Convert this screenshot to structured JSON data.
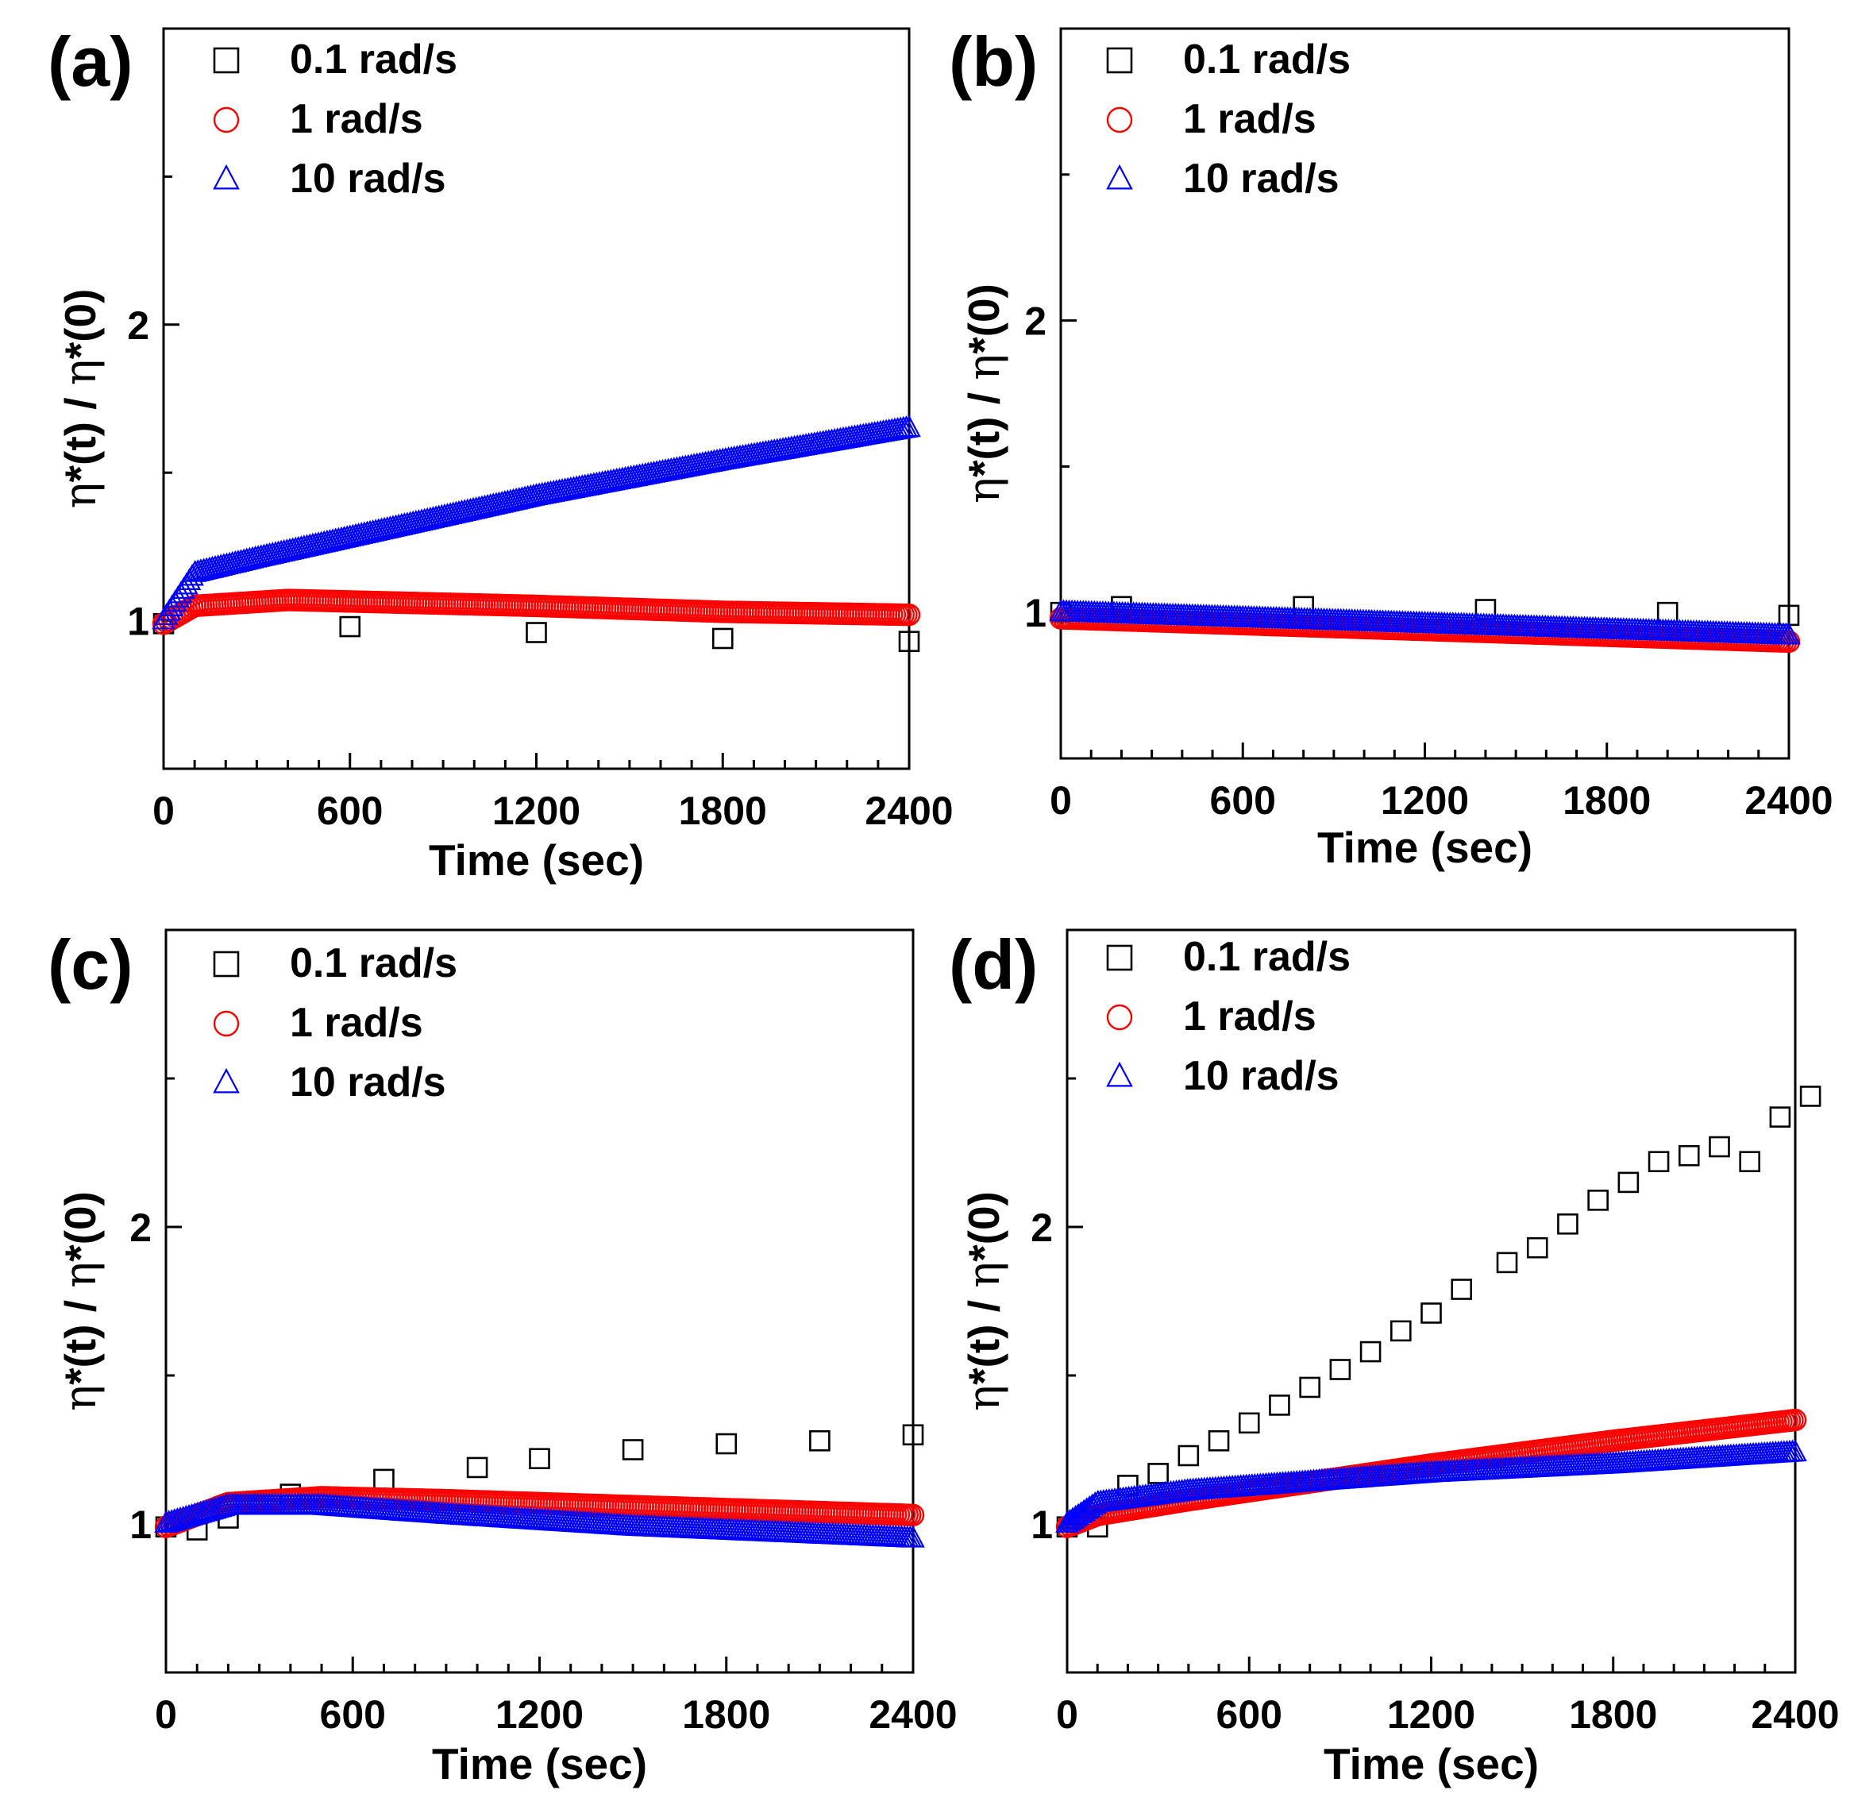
{
  "colors": {
    "series_0.1": "#000000",
    "series_1": "#ff0000",
    "series_10": "#0000ff"
  },
  "chart_data": [
    {
      "panel": "(a)",
      "type": "scatter",
      "xlabel": "Time (sec)",
      "ylabel": [
        "η",
        "*(t) / ",
        "η",
        "*(0)"
      ],
      "xlim": [
        0,
        2400
      ],
      "ylim": [
        0.5,
        3.0
      ],
      "xticks": [
        "0",
        "600",
        "1200",
        "1800",
        "2400"
      ],
      "yticks": [
        "1",
        "2"
      ],
      "legend_position": "top-left",
      "series": [
        {
          "name": "0.1 rad/s",
          "marker": "square",
          "color": "#000000",
          "sparse": true,
          "points": [
            [
              0,
              0.99
            ],
            [
              600,
              0.98
            ],
            [
              1200,
              0.96
            ],
            [
              1800,
              0.94
            ],
            [
              2400,
              0.93
            ]
          ]
        },
        {
          "name": "1 rad/s",
          "marker": "circle",
          "color": "#ff0000",
          "sparse": false,
          "points": [
            [
              0,
              0.99
            ],
            [
              100,
              1.05
            ],
            [
              400,
              1.07
            ],
            [
              800,
              1.06
            ],
            [
              1200,
              1.05
            ],
            [
              1800,
              1.03
            ],
            [
              2400,
              1.02
            ]
          ]
        },
        {
          "name": "10 rad/s",
          "marker": "triangle",
          "color": "#0000ff",
          "sparse": false,
          "points": [
            [
              0,
              1.0
            ],
            [
              100,
              1.16
            ],
            [
              300,
              1.21
            ],
            [
              600,
              1.28
            ],
            [
              1200,
              1.42
            ],
            [
              1800,
              1.54
            ],
            [
              2400,
              1.65
            ]
          ]
        }
      ]
    },
    {
      "panel": "(b)",
      "type": "scatter",
      "xlabel": "Time (sec)",
      "ylabel": [
        "η",
        "*(t) / ",
        "η",
        "*(0)"
      ],
      "xlim": [
        0,
        2400
      ],
      "ylim": [
        0.5,
        3.0
      ],
      "xticks": [
        "0",
        "600",
        "1200",
        "1800",
        "2400"
      ],
      "yticks": [
        "1",
        "2"
      ],
      "legend_position": "top-left",
      "series": [
        {
          "name": "0.1 rad/s",
          "marker": "square",
          "color": "#000000",
          "sparse": true,
          "points": [
            [
              0,
              1.0
            ],
            [
              200,
              1.02
            ],
            [
              800,
              1.02
            ],
            [
              1400,
              1.01
            ],
            [
              2000,
              1.0
            ],
            [
              2400,
              0.99
            ]
          ]
        },
        {
          "name": "1 rad/s",
          "marker": "circle",
          "color": "#ff0000",
          "sparse": false,
          "points": [
            [
              0,
              0.98
            ],
            [
              600,
              0.96
            ],
            [
              1200,
              0.94
            ],
            [
              1800,
              0.92
            ],
            [
              2400,
              0.9
            ]
          ]
        },
        {
          "name": "10 rad/s",
          "marker": "triangle",
          "color": "#0000ff",
          "sparse": false,
          "points": [
            [
              0,
              1.0
            ],
            [
              600,
              0.98
            ],
            [
              1200,
              0.96
            ],
            [
              1800,
              0.94
            ],
            [
              2400,
              0.92
            ]
          ]
        }
      ]
    },
    {
      "panel": "(c)",
      "type": "scatter",
      "xlabel": "Time (sec)",
      "ylabel": [
        "η",
        "*(t) / ",
        "η",
        "*(0)"
      ],
      "xlim": [
        0,
        2400
      ],
      "ylim": [
        0.5,
        3.0
      ],
      "xticks": [
        "0",
        "600",
        "1200",
        "1800",
        "2400"
      ],
      "yticks": [
        "1",
        "2"
      ],
      "legend_position": "top-left",
      "series": [
        {
          "name": "0.1 rad/s",
          "marker": "square",
          "color": "#000000",
          "sparse": true,
          "points": [
            [
              0,
              0.99
            ],
            [
              100,
              0.98
            ],
            [
              200,
              1.02
            ],
            [
              400,
              1.1
            ],
            [
              700,
              1.15
            ],
            [
              1000,
              1.19
            ],
            [
              1200,
              1.22
            ],
            [
              1500,
              1.25
            ],
            [
              1800,
              1.27
            ],
            [
              2100,
              1.28
            ],
            [
              2400,
              1.3
            ]
          ]
        },
        {
          "name": "1 rad/s",
          "marker": "circle",
          "color": "#ff0000",
          "sparse": false,
          "points": [
            [
              0,
              0.99
            ],
            [
              200,
              1.07
            ],
            [
              500,
              1.09
            ],
            [
              900,
              1.08
            ],
            [
              1500,
              1.06
            ],
            [
              2400,
              1.03
            ]
          ]
        },
        {
          "name": "10 rad/s",
          "marker": "triangle",
          "color": "#0000ff",
          "sparse": false,
          "points": [
            [
              0,
              1.0
            ],
            [
              200,
              1.06
            ],
            [
              500,
              1.06
            ],
            [
              900,
              1.03
            ],
            [
              1500,
              0.99
            ],
            [
              2400,
              0.95
            ]
          ]
        }
      ]
    },
    {
      "panel": "(d)",
      "type": "scatter",
      "xlabel": "Time (sec)",
      "ylabel": [
        "η",
        "*(t) / ",
        "η",
        "*(0)"
      ],
      "xlim": [
        0,
        2400
      ],
      "ylim": [
        0.5,
        3.0
      ],
      "xticks": [
        "0",
        "600",
        "1200",
        "1800",
        "2400"
      ],
      "yticks": [
        "1",
        "2"
      ],
      "legend_position": "top-left",
      "series": [
        {
          "name": "0.1 rad/s",
          "marker": "square",
          "color": "#000000",
          "sparse": true,
          "points": [
            [
              0,
              0.99
            ],
            [
              100,
              0.99
            ],
            [
              200,
              1.13
            ],
            [
              300,
              1.17
            ],
            [
              400,
              1.23
            ],
            [
              500,
              1.28
            ],
            [
              600,
              1.34
            ],
            [
              700,
              1.4
            ],
            [
              800,
              1.46
            ],
            [
              900,
              1.52
            ],
            [
              1000,
              1.58
            ],
            [
              1100,
              1.65
            ],
            [
              1200,
              1.71
            ],
            [
              1300,
              1.79
            ],
            [
              1450,
              1.88
            ],
            [
              1550,
              1.93
            ],
            [
              1650,
              2.01
            ],
            [
              1750,
              2.09
            ],
            [
              1850,
              2.15
            ],
            [
              1950,
              2.22
            ],
            [
              2050,
              2.24
            ],
            [
              2150,
              2.27
            ],
            [
              2250,
              2.22
            ],
            [
              2350,
              2.37
            ],
            [
              2450,
              2.44
            ]
          ]
        },
        {
          "name": "1 rad/s",
          "marker": "circle",
          "color": "#ff0000",
          "sparse": false,
          "points": [
            [
              0,
              0.99
            ],
            [
              100,
              1.03
            ],
            [
              400,
              1.08
            ],
            [
              800,
              1.14
            ],
            [
              1200,
              1.2
            ],
            [
              1800,
              1.28
            ],
            [
              2400,
              1.35
            ]
          ]
        },
        {
          "name": "10 rad/s",
          "marker": "triangle",
          "color": "#0000ff",
          "sparse": false,
          "points": [
            [
              0,
              1.0
            ],
            [
              100,
              1.07
            ],
            [
              400,
              1.11
            ],
            [
              800,
              1.14
            ],
            [
              1200,
              1.17
            ],
            [
              1800,
              1.2
            ],
            [
              2400,
              1.24
            ]
          ]
        }
      ]
    }
  ]
}
